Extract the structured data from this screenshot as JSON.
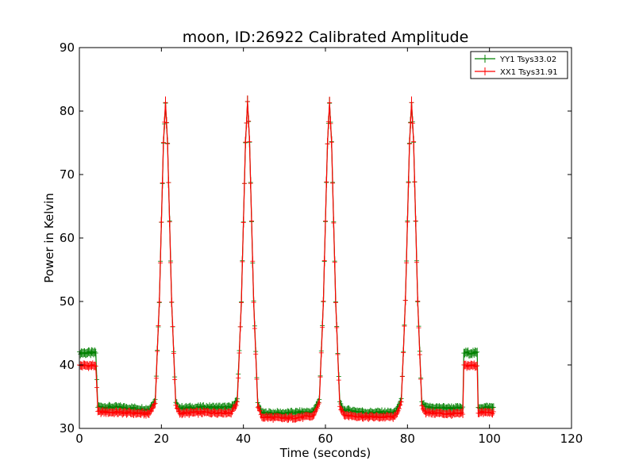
{
  "chart_data": {
    "type": "line",
    "title": "moon, ID:26922 Calibrated Amplitude",
    "xlabel": "Time (seconds)",
    "ylabel": "Power in Kelvin",
    "xlim": [
      0,
      120
    ],
    "ylim": [
      30,
      90
    ],
    "xticks": [
      0,
      20,
      40,
      60,
      80,
      100,
      120
    ],
    "yticks": [
      30,
      40,
      50,
      60,
      70,
      80,
      90
    ],
    "grid": false,
    "legend_position": "top-right",
    "series": [
      {
        "name": "YY1 Tsys33.02",
        "color": "#008000",
        "points": [
          [
            0,
            41.9
          ],
          [
            4,
            41.9
          ],
          [
            4.5,
            33.4
          ],
          [
            10,
            33.3
          ],
          [
            17,
            33.0
          ],
          [
            18.5,
            34.5
          ],
          [
            19.5,
            50
          ],
          [
            20.5,
            75
          ],
          [
            21,
            81.3
          ],
          [
            21.5,
            75
          ],
          [
            22.5,
            50
          ],
          [
            23.5,
            34
          ],
          [
            24.5,
            33.2
          ],
          [
            30,
            33.3
          ],
          [
            37,
            33.3
          ],
          [
            38.5,
            34.5
          ],
          [
            39.5,
            50
          ],
          [
            40.5,
            75
          ],
          [
            41,
            81.5
          ],
          [
            41.5,
            75
          ],
          [
            42.5,
            50
          ],
          [
            43.5,
            34
          ],
          [
            44.5,
            32.4
          ],
          [
            50,
            32.4
          ],
          [
            57,
            32.6
          ],
          [
            58.5,
            34.5
          ],
          [
            59.5,
            50
          ],
          [
            60.5,
            75
          ],
          [
            61,
            81.3
          ],
          [
            61.5,
            75
          ],
          [
            62.5,
            50
          ],
          [
            63.5,
            34
          ],
          [
            64.5,
            32.9
          ],
          [
            70,
            32.5
          ],
          [
            77,
            32.5
          ],
          [
            78.5,
            34.5
          ],
          [
            79.5,
            50
          ],
          [
            80.5,
            75
          ],
          [
            81,
            81.4
          ],
          [
            81.5,
            75
          ],
          [
            82.5,
            50
          ],
          [
            83.5,
            34
          ],
          [
            84.5,
            33.3
          ],
          [
            90,
            33.2
          ],
          [
            93.5,
            33.2
          ],
          [
            93.6,
            41.9
          ],
          [
            97,
            41.9
          ],
          [
            97.1,
            33.3
          ],
          [
            101,
            33.3
          ]
        ]
      },
      {
        "name": "XX1 Tsys31.91",
        "color": "#ff0000",
        "points": [
          [
            0,
            39.9
          ],
          [
            4,
            39.9
          ],
          [
            4.5,
            32.6
          ],
          [
            10,
            32.5
          ],
          [
            17,
            32.3
          ],
          [
            18.5,
            34.0
          ],
          [
            19.5,
            50
          ],
          [
            20.5,
            75
          ],
          [
            21,
            81.3
          ],
          [
            21.5,
            75
          ],
          [
            22.5,
            50
          ],
          [
            23.5,
            33.5
          ],
          [
            24.5,
            32.4
          ],
          [
            30,
            32.5
          ],
          [
            37,
            32.5
          ],
          [
            38.5,
            34.0
          ],
          [
            39.5,
            50
          ],
          [
            40.5,
            75
          ],
          [
            41,
            81.5
          ],
          [
            41.5,
            75
          ],
          [
            42.5,
            50
          ],
          [
            43.5,
            33.5
          ],
          [
            44.5,
            31.8
          ],
          [
            50,
            31.6
          ],
          [
            57,
            31.9
          ],
          [
            58.5,
            34.0
          ],
          [
            59.5,
            50
          ],
          [
            60.5,
            75
          ],
          [
            61,
            81.3
          ],
          [
            61.5,
            75
          ],
          [
            62.5,
            50
          ],
          [
            63.5,
            33.5
          ],
          [
            64.5,
            32.1
          ],
          [
            70,
            31.8
          ],
          [
            77,
            31.8
          ],
          [
            78.5,
            34.0
          ],
          [
            79.5,
            50
          ],
          [
            80.5,
            75
          ],
          [
            81,
            81.4
          ],
          [
            81.5,
            75
          ],
          [
            82.5,
            50
          ],
          [
            83.5,
            33.5
          ],
          [
            84.5,
            32.5
          ],
          [
            90,
            32.3
          ],
          [
            93.5,
            32.3
          ],
          [
            93.6,
            39.9
          ],
          [
            97,
            39.9
          ],
          [
            97.1,
            32.5
          ],
          [
            101,
            32.5
          ]
        ]
      }
    ]
  }
}
